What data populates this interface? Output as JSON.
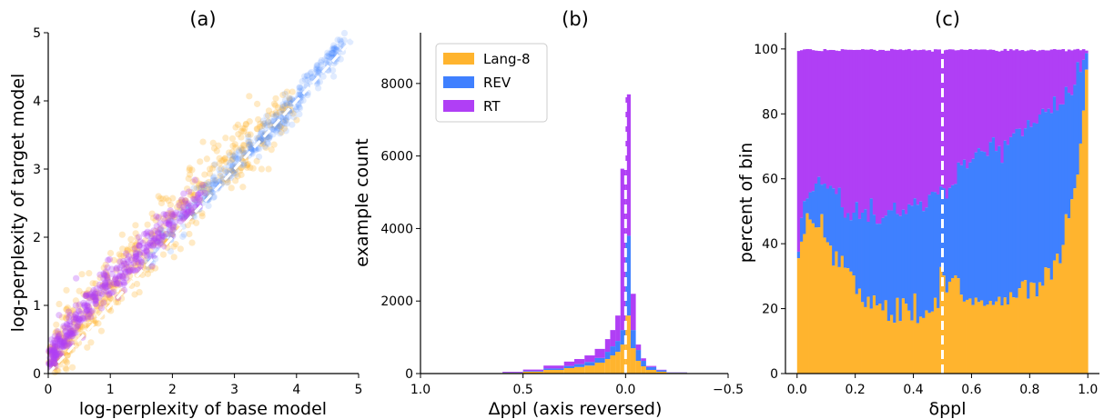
{
  "colors": {
    "lang8": "#ffb42e",
    "rev": "#3f80ff",
    "rt": "#b03ff5",
    "ref_line": "#ffffff"
  },
  "chart_data": [
    {
      "type": "scatter",
      "title": "(a)",
      "xlabel": "log-perplexity of base model",
      "ylabel": "log-perplexity of target model",
      "xlim": [
        0,
        5
      ],
      "ylim": [
        0,
        5
      ],
      "xticks": [
        "0",
        "1",
        "2",
        "3",
        "4",
        "5"
      ],
      "yticks": [
        "0",
        "1",
        "2",
        "3",
        "4",
        "5"
      ],
      "series": [
        {
          "key": "lang8",
          "trend": [
            [
              0.1,
              0.2
            ],
            [
              0.5,
              0.75
            ],
            [
              1,
              1.25
            ],
            [
              1.5,
              1.75
            ],
            [
              2,
              2.25
            ],
            [
              2.5,
              2.7
            ],
            [
              3,
              3.15
            ],
            [
              3.5,
              3.55
            ],
            [
              4,
              4.0
            ]
          ],
          "spread": 0.25
        },
        {
          "key": "rev",
          "trend": [
            [
              1.5,
              1.6
            ],
            [
              2,
              2.1
            ],
            [
              2.5,
              2.6
            ],
            [
              3,
              3.05
            ],
            [
              3.5,
              3.5
            ],
            [
              4,
              4.0
            ],
            [
              4.5,
              4.55
            ],
            [
              4.8,
              4.9
            ]
          ],
          "spread": 0.1
        },
        {
          "key": "rt",
          "trend": [
            [
              0.05,
              0.25
            ],
            [
              0.3,
              0.6
            ],
            [
              0.6,
              0.95
            ],
            [
              1,
              1.35
            ],
            [
              1.5,
              1.8
            ],
            [
              2,
              2.25
            ],
            [
              2.5,
              2.7
            ]
          ],
          "spread": 0.12
        }
      ],
      "reference_line": [
        [
          0,
          0
        ],
        [
          5,
          5
        ]
      ]
    },
    {
      "type": "bar",
      "title": "(b)",
      "xlabel": "Δppl (axis reversed)",
      "ylabel": "example count",
      "xlim": [
        1.0,
        -0.5
      ],
      "ylim": [
        0,
        9400
      ],
      "xticks": [
        "1.0",
        "0.5",
        "0.0",
        "−0.5"
      ],
      "yticks": [
        "0",
        "2000",
        "4000",
        "6000",
        "8000"
      ],
      "legend": [
        "Lang-8",
        "REV",
        "RT"
      ],
      "legend_position": "top-left",
      "stacked": true,
      "bin_edges": [
        0.6,
        0.5,
        0.4,
        0.3,
        0.25,
        0.2,
        0.15,
        0.1,
        0.075,
        0.05,
        0.025,
        0.0,
        -0.025,
        -0.05,
        -0.075,
        -0.1,
        -0.15,
        -0.2,
        -0.3
      ],
      "series": [
        {
          "name": "Lang-8",
          "values": [
            20,
            50,
            100,
            150,
            180,
            220,
            300,
            400,
            500,
            600,
            800,
            1600,
            700,
            350,
            200,
            100,
            50,
            20
          ]
        },
        {
          "name": "REV",
          "values": [
            10,
            20,
            40,
            60,
            80,
            100,
            130,
            200,
            250,
            300,
            400,
            2200,
            500,
            300,
            150,
            80,
            40,
            10
          ]
        },
        {
          "name": "RT",
          "values": [
            20,
            40,
            80,
            120,
            140,
            180,
            250,
            350,
            450,
            700,
            4450,
            3900,
            1000,
            150,
            70,
            30,
            15,
            5
          ]
        }
      ],
      "reference_line_x": 0.0
    },
    {
      "type": "bar",
      "title": "(c)",
      "xlabel": "δppl",
      "ylabel": "percent of bin",
      "xlim": [
        -0.04,
        1.04
      ],
      "ylim": [
        0,
        105
      ],
      "xticks": [
        "0.0",
        "0.2",
        "0.4",
        "0.6",
        "0.8",
        "1.0"
      ],
      "yticks": [
        "0",
        "20",
        "40",
        "60",
        "80",
        "100"
      ],
      "stacked": true,
      "bins": 100,
      "lang8_curve": [
        [
          0,
          30
        ],
        [
          0.02,
          44
        ],
        [
          0.06,
          47
        ],
        [
          0.1,
          44
        ],
        [
          0.15,
          34
        ],
        [
          0.2,
          25
        ],
        [
          0.3,
          20
        ],
        [
          0.4,
          19
        ],
        [
          0.49,
          20
        ],
        [
          0.5,
          31
        ],
        [
          0.55,
          28
        ],
        [
          0.6,
          24
        ],
        [
          0.7,
          23
        ],
        [
          0.8,
          26
        ],
        [
          0.9,
          36
        ],
        [
          0.95,
          52
        ],
        [
          1.0,
          93
        ]
      ],
      "cumulative_rev_curve": [
        [
          0,
          32
        ],
        [
          0.02,
          53
        ],
        [
          0.06,
          59
        ],
        [
          0.1,
          57
        ],
        [
          0.15,
          54
        ],
        [
          0.2,
          50
        ],
        [
          0.3,
          48
        ],
        [
          0.4,
          51
        ],
        [
          0.49,
          58
        ],
        [
          0.5,
          52
        ],
        [
          0.55,
          60
        ],
        [
          0.6,
          66
        ],
        [
          0.7,
          70
        ],
        [
          0.8,
          76
        ],
        [
          0.9,
          84
        ],
        [
          0.95,
          88
        ],
        [
          1.0,
          97
        ]
      ],
      "series_keys": [
        "lang8",
        "rev",
        "rt"
      ],
      "reference_line_x": 0.5
    }
  ]
}
